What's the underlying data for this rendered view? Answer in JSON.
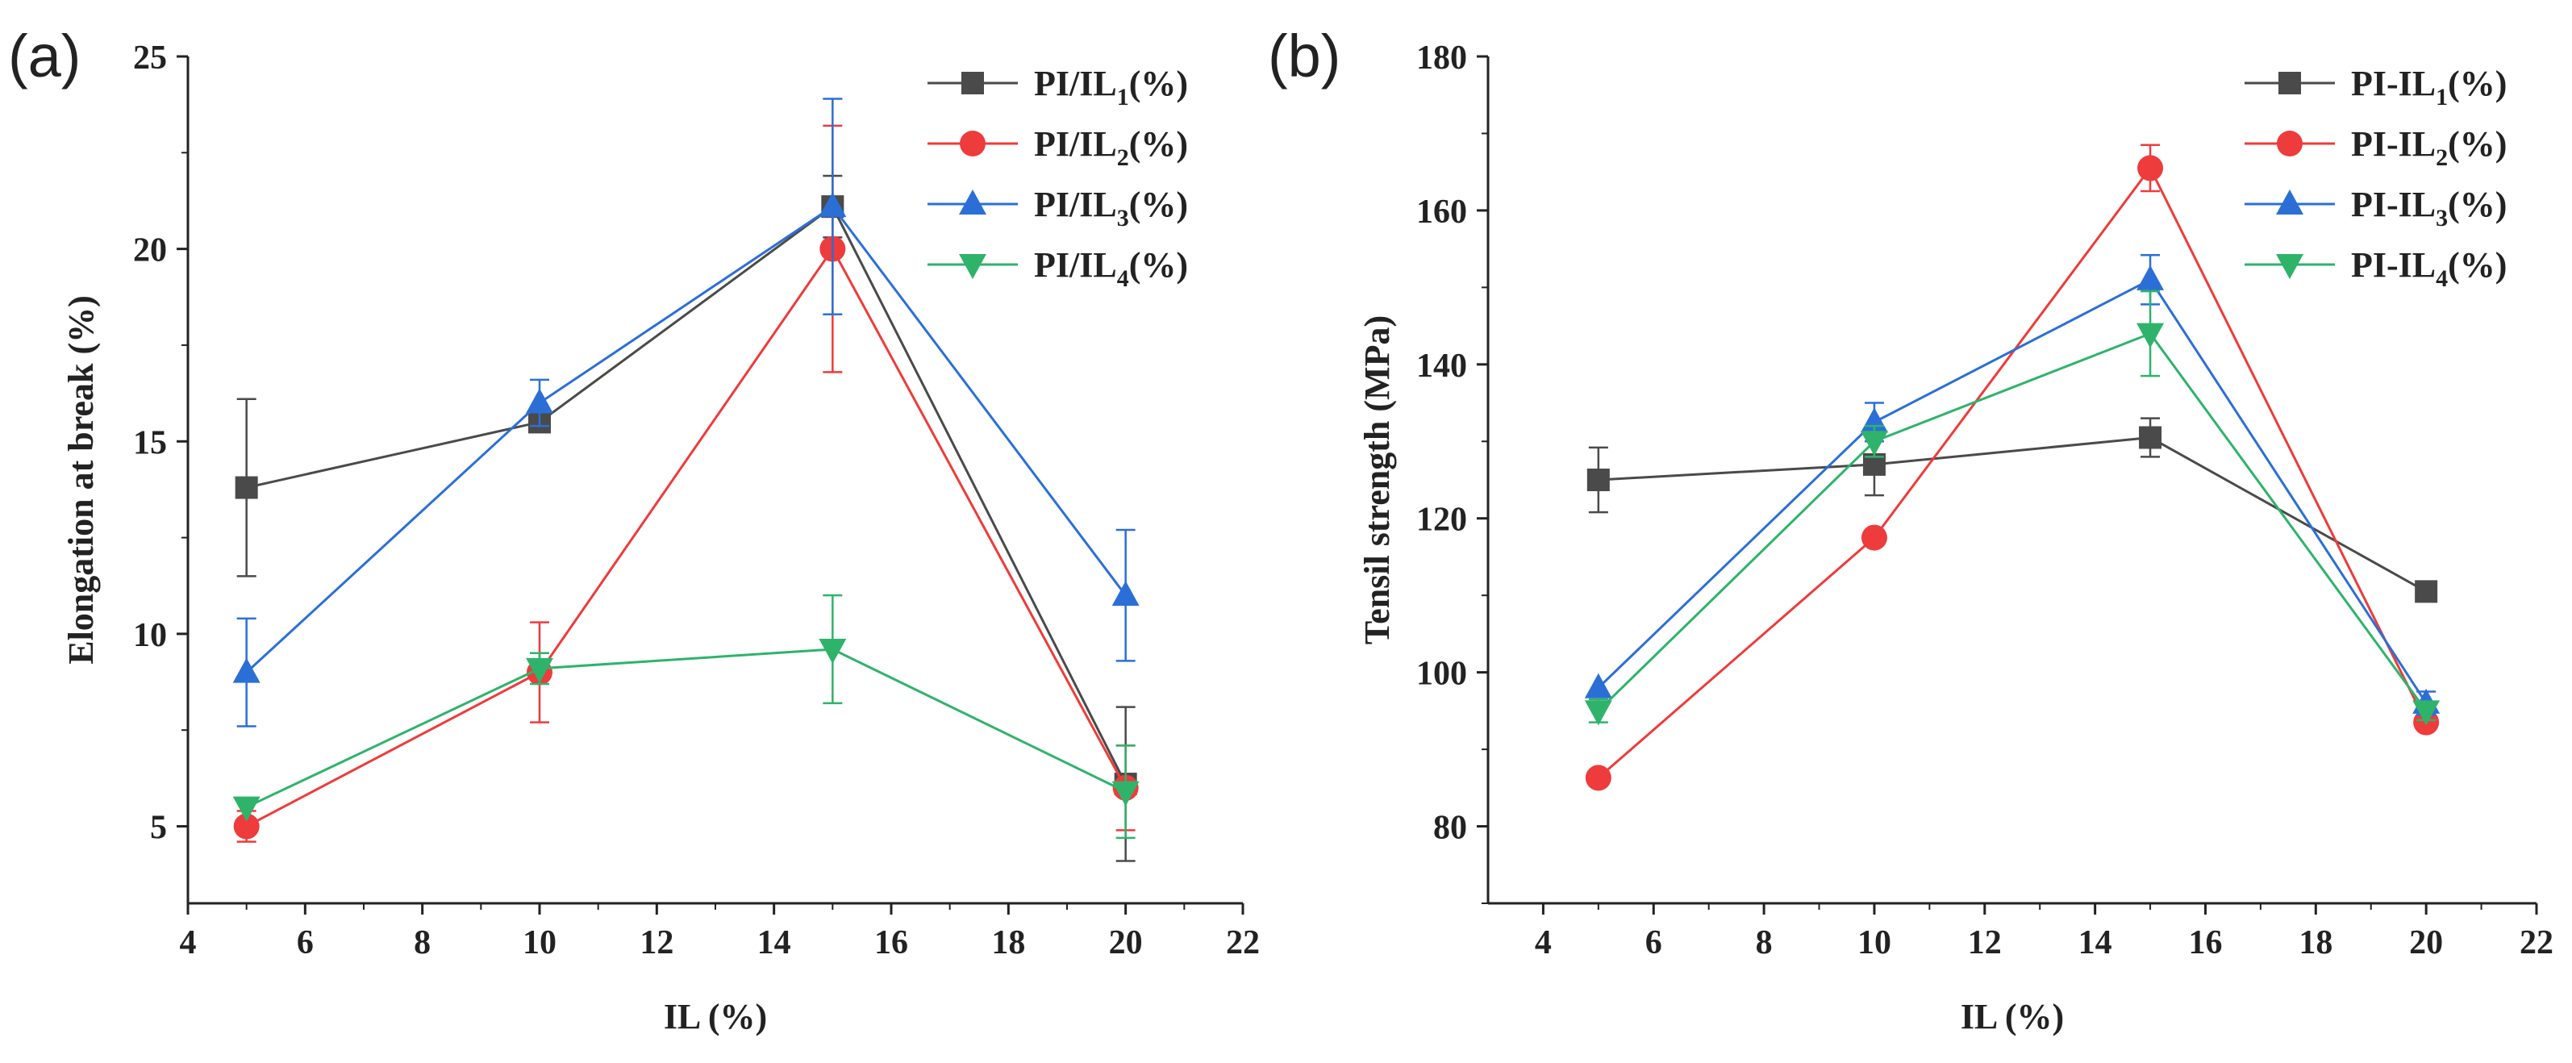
{
  "chart_data": [
    {
      "type": "line",
      "panel_label": "(a)",
      "xlabel": "IL (%)",
      "ylabel": "Elongation at break (%)",
      "xlim": [
        4,
        22
      ],
      "ylim": [
        3,
        25
      ],
      "xticks": [
        4,
        6,
        8,
        10,
        12,
        14,
        16,
        18,
        20,
        22
      ],
      "yticks": [
        5,
        10,
        15,
        20,
        25
      ],
      "x": [
        5,
        10,
        15,
        20
      ],
      "legend_position": "top-right",
      "series": [
        {
          "name": "PI/IL1(%)",
          "legend_main": "PI/IL",
          "legend_sub": "1",
          "legend_tail": "(%)",
          "color": "#4a4a4a",
          "marker": "square",
          "values": [
            13.8,
            15.5,
            21.1,
            6.1
          ],
          "errors": [
            2.3,
            0.0,
            0.8,
            2.0
          ]
        },
        {
          "name": "PI/IL2(%)",
          "legend_main": "PI/IL",
          "legend_sub": "2",
          "legend_tail": "(%)",
          "color": "#ee3b3b",
          "marker": "circle",
          "values": [
            5.0,
            9.0,
            20.0,
            6.0
          ],
          "errors": [
            0.4,
            1.3,
            3.2,
            1.1
          ]
        },
        {
          "name": "PI/IL3(%)",
          "legend_main": "PI/IL",
          "legend_sub": "3",
          "legend_tail": "(%)",
          "color": "#2b6fd6",
          "marker": "triangle-up",
          "values": [
            9.0,
            16.0,
            21.1,
            11.0
          ],
          "errors": [
            1.4,
            0.6,
            2.8,
            1.7
          ]
        },
        {
          "name": "PI/IL4(%)",
          "legend_main": "PI/IL",
          "legend_sub": "4",
          "legend_tail": "(%)",
          "color": "#2fb36b",
          "marker": "triangle-down",
          "values": [
            5.5,
            9.1,
            9.6,
            5.9
          ],
          "errors": [
            0.0,
            0.4,
            1.4,
            1.2
          ]
        }
      ]
    },
    {
      "type": "line",
      "panel_label": "(b)",
      "xlabel": "IL (%)",
      "ylabel": "Tensil strength (MPa)",
      "xlim": [
        3,
        22
      ],
      "ylim": [
        70,
        180
      ],
      "xticks": [
        4,
        6,
        8,
        10,
        12,
        14,
        16,
        18,
        20,
        22
      ],
      "yticks": [
        80,
        100,
        120,
        140,
        160,
        180
      ],
      "x": [
        5,
        10,
        15,
        20
      ],
      "legend_position": "top-right",
      "series": [
        {
          "name": "PI-IL1(%)",
          "legend_main": "PI-IL",
          "legend_sub": "1",
          "legend_tail": "(%)",
          "color": "#4a4a4a",
          "marker": "square",
          "values": [
            125.0,
            127.0,
            130.5,
            110.5
          ],
          "errors": [
            4.2,
            4.0,
            2.5,
            0.0
          ]
        },
        {
          "name": "PI-IL2(%)",
          "legend_main": "PI-IL",
          "legend_sub": "2",
          "legend_tail": "(%)",
          "color": "#ee3b3b",
          "marker": "circle",
          "values": [
            86.3,
            117.5,
            165.5,
            93.5
          ],
          "errors": [
            0.0,
            0.0,
            3.0,
            0.0
          ]
        },
        {
          "name": "PI-IL3(%)",
          "legend_main": "PI-IL",
          "legend_sub": "3",
          "legend_tail": "(%)",
          "color": "#2b6fd6",
          "marker": "triangle-up",
          "values": [
            98.0,
            132.5,
            151.0,
            96.0
          ],
          "errors": [
            0.0,
            2.5,
            3.2,
            1.5
          ]
        },
        {
          "name": "PI-IL4(%)",
          "legend_main": "PI-IL",
          "legend_sub": "4",
          "legend_tail": "(%)",
          "color": "#2fb36b",
          "marker": "triangle-down",
          "values": [
            95.0,
            130.0,
            144.0,
            95.0
          ],
          "errors": [
            1.5,
            2.0,
            5.5,
            1.2
          ]
        }
      ]
    }
  ]
}
